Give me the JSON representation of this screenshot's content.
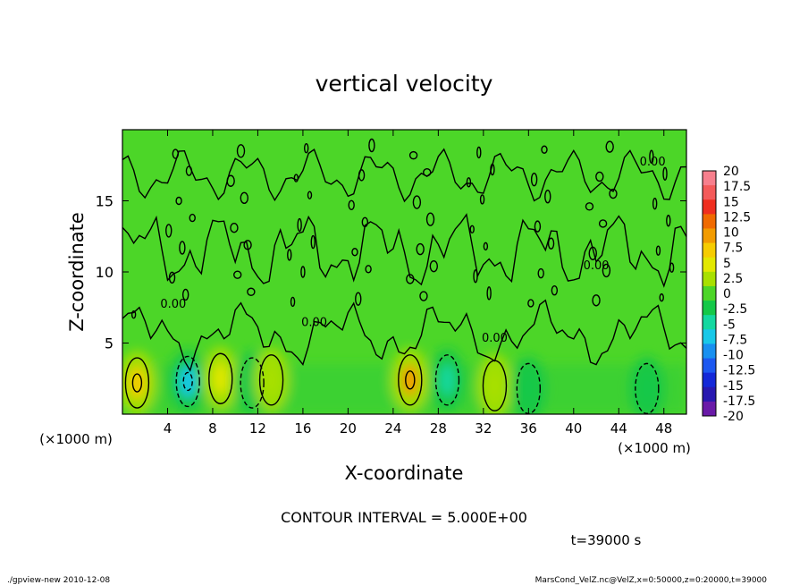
{
  "chart_data": {
    "type": "heatmap",
    "title": "vertical velocity",
    "xlabel": "X-coordinate",
    "ylabel": "Z-coordinate",
    "x_unit_left": "(×1000 m)",
    "x_unit_right": "(×1000 m)",
    "xlim": [
      0,
      50
    ],
    "ylim": [
      0,
      20
    ],
    "x_ticks": [
      4,
      8,
      12,
      16,
      20,
      24,
      28,
      32,
      36,
      40,
      44,
      48
    ],
    "y_ticks": [
      5,
      10,
      15
    ],
    "contour_interval_text": "CONTOUR INTERVAL = 5.000E+00",
    "time_text": "t=39000 s",
    "contour_labels": [
      "0.00",
      "0.00",
      "0.00",
      "0.00",
      "0.00"
    ],
    "colorbar": {
      "levels": [
        20,
        17.5,
        15,
        12.5,
        10,
        7.5,
        5,
        2.5,
        0,
        -2.5,
        -5,
        -7.5,
        -10,
        -12.5,
        -15,
        -17.5,
        -20
      ],
      "colors": [
        "#f77f8d",
        "#f45a5a",
        "#ef2e1f",
        "#f06a00",
        "#f29b00",
        "#f6cc00",
        "#e3e800",
        "#a8e000",
        "#4cd628",
        "#14c848",
        "#14d8a0",
        "#18c8e8",
        "#1890f0",
        "#1c58f0",
        "#1428d8",
        "#2818b0",
        "#6a1aa8"
      ]
    },
    "features": [
      {
        "x": 1.3,
        "z": 2.2,
        "w": 7.5
      },
      {
        "x": 5.8,
        "z": 2.3,
        "w": -7.5
      },
      {
        "x": 8.7,
        "z": 2.5,
        "w": 5
      },
      {
        "x": 11.5,
        "z": 2.2,
        "w": -2.5
      },
      {
        "x": 13.2,
        "z": 2.4,
        "w": 2.5
      },
      {
        "x": 25.5,
        "z": 2.4,
        "w": 10
      },
      {
        "x": 28.8,
        "z": 2.4,
        "w": -5
      },
      {
        "x": 33,
        "z": 2.0,
        "w": 2.5
      },
      {
        "x": 36,
        "z": 1.8,
        "w": -2.5
      },
      {
        "x": 46.5,
        "z": 1.8,
        "w": -2.5
      }
    ]
  },
  "footer": {
    "left": "./gpview-new   2010-12-08",
    "right": "MarsCond_VelZ.nc@VelZ,x=0:50000,z=0:20000,t=39000"
  }
}
